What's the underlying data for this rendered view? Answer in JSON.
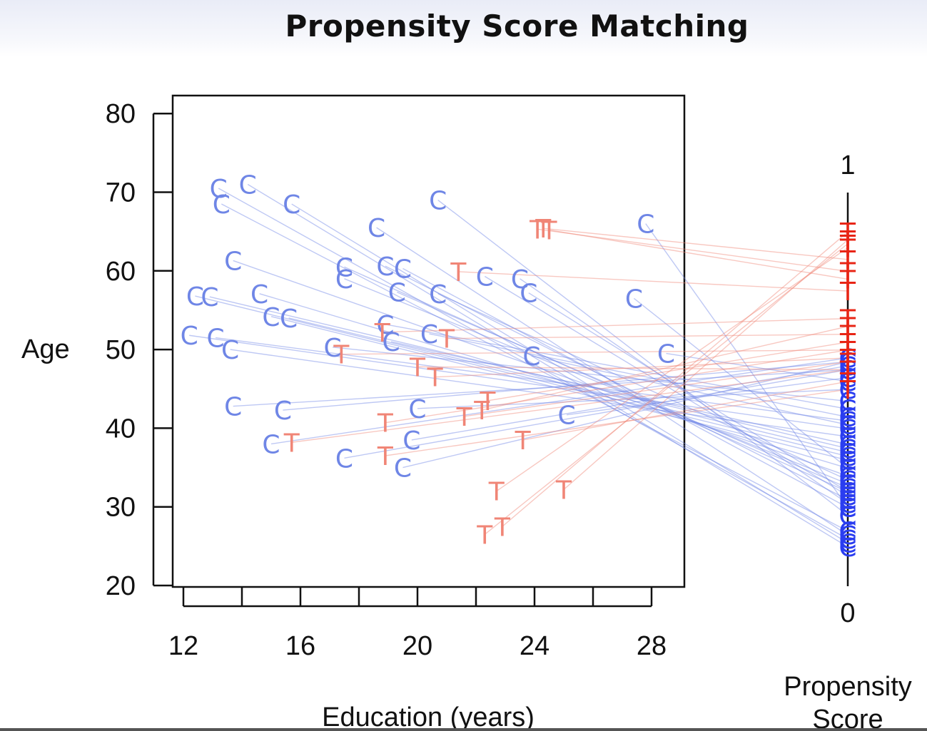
{
  "title": "Propensity Score Matching",
  "chart_data": {
    "type": "scatter",
    "xlabel": "Education (years)",
    "ylabel": "Age",
    "xlim": [
      11.7,
      29.2
    ],
    "ylim": [
      19.6,
      80
    ],
    "xticks": [
      12,
      16,
      20,
      24,
      28
    ],
    "yticks": [
      20,
      30,
      40,
      50,
      60,
      70,
      80
    ],
    "x_minor_ticks": [
      14,
      18,
      22,
      26
    ],
    "grid": false,
    "legend": "none",
    "colors": {
      "control": "#6f86e6",
      "treated": "#f08576",
      "control_strong": "#2a3df0",
      "treated_strong": "#e82515",
      "axis": "#111111"
    },
    "series": [
      {
        "marker": "C",
        "points": [
          [
            13.2,
            70.5,
            0.12
          ],
          [
            13.3,
            68.5,
            0.14
          ],
          [
            14.2,
            71.0,
            0.1
          ],
          [
            15.7,
            68.5,
            0.11
          ],
          [
            18.6,
            65.5,
            0.13
          ],
          [
            20.7,
            69.0,
            0.18
          ],
          [
            27.8,
            66.0,
            0.2
          ],
          [
            13.7,
            61.3,
            0.28
          ],
          [
            17.5,
            60.5,
            0.24
          ],
          [
            17.5,
            59.0,
            0.26
          ],
          [
            18.9,
            60.6,
            0.22
          ],
          [
            19.5,
            60.3,
            0.2
          ],
          [
            22.3,
            59.3,
            0.23
          ],
          [
            23.5,
            59.0,
            0.21
          ],
          [
            19.3,
            57.3,
            0.25
          ],
          [
            20.7,
            57.1,
            0.27
          ],
          [
            23.8,
            57.2,
            0.24
          ],
          [
            27.4,
            56.5,
            0.3
          ],
          [
            12.4,
            56.8,
            0.33
          ],
          [
            12.9,
            56.7,
            0.35
          ],
          [
            14.6,
            57.1,
            0.3
          ],
          [
            15.0,
            54.2,
            0.32
          ],
          [
            15.6,
            54.0,
            0.34
          ],
          [
            12.2,
            51.8,
            0.4
          ],
          [
            13.1,
            51.5,
            0.42
          ],
          [
            13.6,
            50.0,
            0.38
          ],
          [
            18.9,
            53.2,
            0.45
          ],
          [
            19.1,
            51.0,
            0.36
          ],
          [
            20.4,
            52.0,
            0.43
          ],
          [
            17.1,
            50.3,
            0.47
          ],
          [
            23.9,
            49.2,
            0.41
          ],
          [
            28.5,
            49.5,
            0.52
          ],
          [
            13.7,
            42.8,
            0.55
          ],
          [
            15.4,
            42.3,
            0.57
          ],
          [
            20.0,
            42.5,
            0.5
          ],
          [
            25.1,
            41.7,
            0.53
          ],
          [
            15.0,
            38.0,
            0.58
          ],
          [
            19.8,
            38.5,
            0.56
          ],
          [
            17.5,
            36.2,
            0.55
          ],
          [
            19.5,
            35.0,
            0.57
          ]
        ]
      },
      {
        "marker": "T",
        "points": [
          [
            24.1,
            65.3,
            0.8
          ],
          [
            24.3,
            65.4,
            0.83
          ],
          [
            24.5,
            65.2,
            0.78
          ],
          [
            21.4,
            59.9,
            0.75
          ],
          [
            18.8,
            52.2,
            0.68
          ],
          [
            21.0,
            51.4,
            0.64
          ],
          [
            17.4,
            49.4,
            0.6
          ],
          [
            20.0,
            47.8,
            0.55
          ],
          [
            20.6,
            46.5,
            0.58
          ],
          [
            22.4,
            43.5,
            0.62
          ],
          [
            22.2,
            42.3,
            0.66
          ],
          [
            21.6,
            41.5,
            0.57
          ],
          [
            18.9,
            40.7,
            0.6
          ],
          [
            15.7,
            38.2,
            0.55
          ],
          [
            23.6,
            38.5,
            0.52
          ],
          [
            18.9,
            36.5,
            0.5
          ],
          [
            22.7,
            32.0,
            0.86
          ],
          [
            25.0,
            32.2,
            0.88
          ],
          [
            22.9,
            27.5,
            0.9
          ],
          [
            22.3,
            26.5,
            0.87
          ]
        ]
      }
    ],
    "propensity_axis": {
      "label": "Propensity Score",
      "min_label": "0",
      "max_label": "1"
    }
  }
}
